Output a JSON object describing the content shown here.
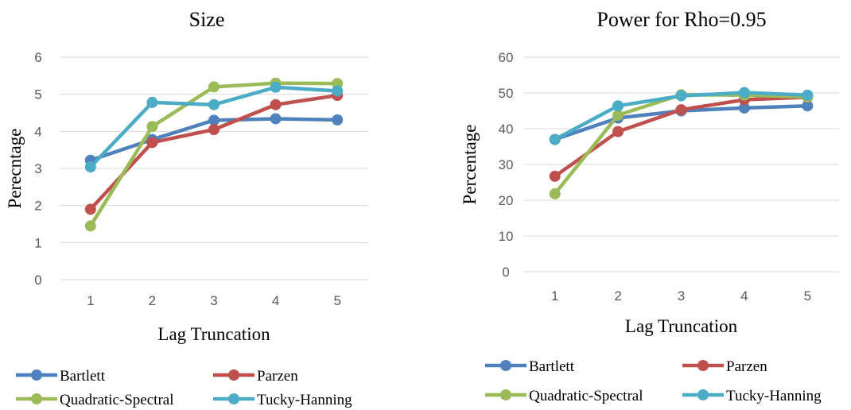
{
  "chart_data": [
    {
      "type": "line",
      "title": "Size",
      "xlabel": "Lag Truncation",
      "ylabel": "Perecntage",
      "categories": [
        "1",
        "2",
        "3",
        "4",
        "5"
      ],
      "ylim": [
        0,
        6
      ],
      "yticks": [
        "0",
        "1",
        "2",
        "3",
        "4",
        "5",
        "6"
      ],
      "grid": true,
      "legend_position": "bottom",
      "series": [
        {
          "name": "Bartlett",
          "color": "#4F81BD",
          "values": [
            3.22,
            3.78,
            4.3,
            4.34,
            4.31
          ]
        },
        {
          "name": "Parzen",
          "color": "#C0504D",
          "values": [
            1.9,
            3.7,
            4.05,
            4.72,
            4.97
          ]
        },
        {
          "name": "Quadratic-Spectral",
          "color": "#9BBB59",
          "values": [
            1.45,
            4.13,
            5.2,
            5.3,
            5.29
          ]
        },
        {
          "name": "Tucky-Hanning",
          "color": "#4BACC6",
          "values": [
            3.04,
            4.78,
            4.72,
            5.19,
            5.09
          ]
        }
      ]
    },
    {
      "type": "line",
      "title": "Power for Rho=0.95",
      "xlabel": "Lag Truncation",
      "ylabel": "Percentage",
      "categories": [
        "1",
        "2",
        "3",
        "4",
        "5"
      ],
      "ylim": [
        0,
        60
      ],
      "yticks": [
        "0",
        "10",
        "20",
        "30",
        "40",
        "50",
        "60"
      ],
      "grid": true,
      "legend_position": "bottom",
      "series": [
        {
          "name": "Bartlett",
          "color": "#4F81BD",
          "values": [
            37.0,
            43.0,
            45.0,
            45.8,
            46.4
          ]
        },
        {
          "name": "Parzen",
          "color": "#C0504D",
          "values": [
            26.7,
            39.2,
            45.3,
            48.1,
            48.8
          ]
        },
        {
          "name": "Quadratic-Spectral",
          "color": "#9BBB59",
          "values": [
            21.8,
            43.8,
            49.5,
            49.4,
            48.9
          ]
        },
        {
          "name": "Tucky-Hanning",
          "color": "#4BACC6",
          "values": [
            37.0,
            46.4,
            49.2,
            50.1,
            49.4
          ]
        }
      ]
    }
  ]
}
